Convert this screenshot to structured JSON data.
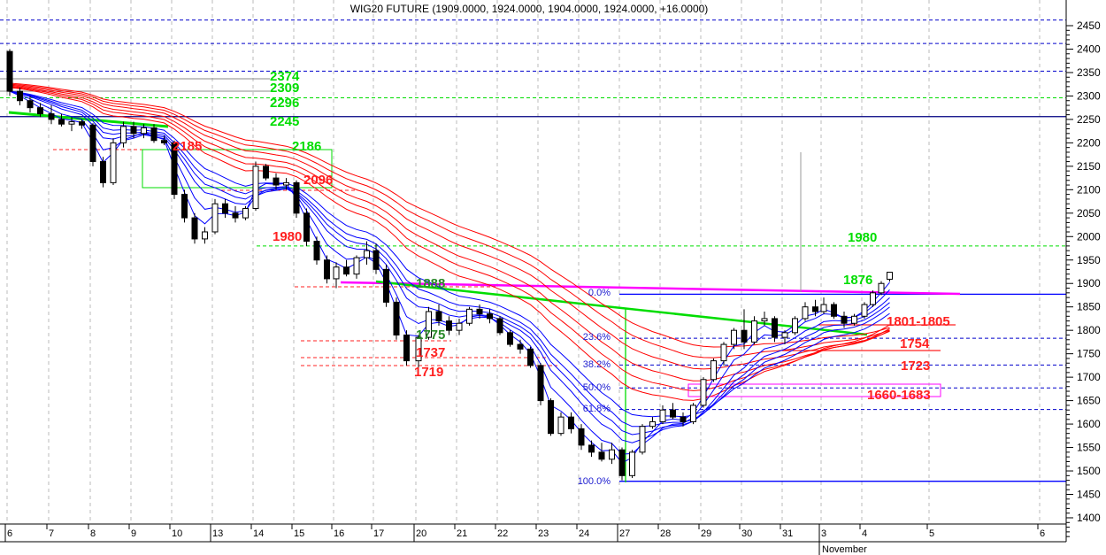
{
  "chart_data": {
    "type": "candlestick",
    "title": "WIG20 FUTURE (1909.0000, 1924.0000, 1904.0000, 1924.0000, +16.0000)",
    "ylim": [
      1390,
      2470
    ],
    "y_ticks": [
      2450,
      2400,
      2350,
      2300,
      2250,
      2200,
      2150,
      2100,
      2050,
      2000,
      1950,
      1900,
      1850,
      1800,
      1750,
      1700,
      1650,
      1600,
      1550,
      1500,
      1450,
      1400
    ],
    "x_ticks": [
      "6",
      "7",
      "8",
      "9",
      "10",
      "13",
      "14",
      "15",
      "16",
      "17",
      "20",
      "21",
      "22",
      "23",
      "24",
      "27",
      "28",
      "29",
      "30",
      "31",
      "3",
      "4",
      "5",
      "6"
    ],
    "month_label": "November",
    "grid": "vertical dashed",
    "candles_per_day": 4,
    "ohlc": [
      [
        2395,
        2400,
        2300,
        2310
      ],
      [
        2310,
        2318,
        2280,
        2290
      ],
      [
        2290,
        2300,
        2265,
        2275
      ],
      [
        2275,
        2285,
        2255,
        2262
      ],
      [
        2262,
        2280,
        2240,
        2250
      ],
      [
        2250,
        2262,
        2235,
        2240
      ],
      [
        2240,
        2255,
        2225,
        2245
      ],
      [
        2245,
        2250,
        2230,
        2238
      ],
      [
        2238,
        2242,
        2150,
        2160
      ],
      [
        2160,
        2170,
        2105,
        2115
      ],
      [
        2115,
        2210,
        2110,
        2200
      ],
      [
        2200,
        2245,
        2190,
        2235
      ],
      [
        2235,
        2245,
        2210,
        2220
      ],
      [
        2220,
        2240,
        2210,
        2232
      ],
      [
        2232,
        2240,
        2200,
        2205
      ],
      [
        2205,
        2215,
        2195,
        2200
      ],
      [
        2200,
        2205,
        2080,
        2090
      ],
      [
        2090,
        2100,
        2030,
        2040
      ],
      [
        2040,
        2050,
        1985,
        1995
      ],
      [
        1995,
        2020,
        1985,
        2010
      ],
      [
        2010,
        2080,
        2005,
        2070
      ],
      [
        2070,
        2080,
        2040,
        2050
      ],
      [
        2050,
        2065,
        2030,
        2040
      ],
      [
        2040,
        2065,
        2035,
        2060
      ],
      [
        2060,
        2160,
        2055,
        2150
      ],
      [
        2150,
        2155,
        2120,
        2125
      ],
      [
        2125,
        2135,
        2100,
        2110
      ],
      [
        2110,
        2125,
        2100,
        2115
      ],
      [
        2115,
        2120,
        2040,
        2050
      ],
      [
        2050,
        2060,
        1980,
        1990
      ],
      [
        1990,
        2000,
        1940,
        1950
      ],
      [
        1950,
        1960,
        1900,
        1910
      ],
      [
        1910,
        1945,
        1890,
        1935
      ],
      [
        1935,
        1950,
        1915,
        1920
      ],
      [
        1920,
        1960,
        1910,
        1955
      ],
      [
        1955,
        1990,
        1940,
        1970
      ],
      [
        1970,
        1985,
        1920,
        1930
      ],
      [
        1930,
        1940,
        1850,
        1860
      ],
      [
        1860,
        1870,
        1780,
        1790
      ],
      [
        1790,
        1800,
        1725,
        1735
      ],
      [
        1735,
        1790,
        1720,
        1785
      ],
      [
        1785,
        1850,
        1780,
        1840
      ],
      [
        1840,
        1855,
        1810,
        1820
      ],
      [
        1820,
        1830,
        1790,
        1800
      ],
      [
        1800,
        1825,
        1790,
        1815
      ],
      [
        1815,
        1850,
        1810,
        1845
      ],
      [
        1845,
        1855,
        1825,
        1835
      ],
      [
        1835,
        1845,
        1815,
        1825
      ],
      [
        1825,
        1830,
        1790,
        1795
      ],
      [
        1795,
        1800,
        1765,
        1770
      ],
      [
        1770,
        1780,
        1750,
        1760
      ],
      [
        1760,
        1765,
        1720,
        1725
      ],
      [
        1725,
        1730,
        1640,
        1650
      ],
      [
        1650,
        1655,
        1575,
        1580
      ],
      [
        1580,
        1625,
        1575,
        1615
      ],
      [
        1615,
        1625,
        1580,
        1590
      ],
      [
        1590,
        1600,
        1545,
        1555
      ],
      [
        1555,
        1565,
        1530,
        1540
      ],
      [
        1540,
        1560,
        1520,
        1525
      ],
      [
        1525,
        1560,
        1515,
        1545
      ],
      [
        1545,
        1550,
        1480,
        1490
      ],
      [
        1490,
        1545,
        1485,
        1540
      ],
      [
        1540,
        1600,
        1535,
        1595
      ],
      [
        1595,
        1615,
        1590,
        1605
      ],
      [
        1605,
        1640,
        1600,
        1630
      ],
      [
        1630,
        1645,
        1610,
        1615
      ],
      [
        1615,
        1625,
        1595,
        1605
      ],
      [
        1605,
        1645,
        1600,
        1640
      ],
      [
        1640,
        1700,
        1635,
        1695
      ],
      [
        1695,
        1740,
        1690,
        1735
      ],
      [
        1735,
        1775,
        1725,
        1770
      ],
      [
        1770,
        1805,
        1760,
        1800
      ],
      [
        1800,
        1845,
        1760,
        1775
      ],
      [
        1775,
        1830,
        1770,
        1820
      ],
      [
        1820,
        1840,
        1810,
        1825
      ],
      [
        1825,
        1830,
        1775,
        1785
      ],
      [
        1785,
        1800,
        1770,
        1795
      ],
      [
        1795,
        1830,
        1790,
        1825
      ],
      [
        1825,
        1860,
        1820,
        1850
      ],
      [
        1850,
        1865,
        1830,
        1840
      ],
      [
        1840,
        1870,
        1835,
        1855
      ],
      [
        1855,
        1860,
        1825,
        1830
      ],
      [
        1830,
        1840,
        1805,
        1815
      ],
      [
        1815,
        1835,
        1810,
        1830
      ],
      [
        1830,
        1860,
        1825,
        1855
      ],
      [
        1855,
        1885,
        1850,
        1880
      ],
      [
        1880,
        1905,
        1875,
        1900
      ],
      [
        1909,
        1924,
        1904,
        1924
      ]
    ],
    "ribbons": {
      "short_periods": [
        3,
        5,
        8,
        10,
        12,
        15
      ],
      "long_periods": [
        22,
        26,
        30,
        35,
        40,
        45
      ],
      "short_color": "#0000ff",
      "long_color": "#ff0000"
    },
    "levels": [
      {
        "value": 2462,
        "color": "#0000cc",
        "style": "dashed"
      },
      {
        "value": 2412,
        "color": "#0000cc",
        "style": "dashed"
      },
      {
        "value": 2353,
        "color": "#0000cc",
        "style": "dashed"
      },
      {
        "value": 2296,
        "color": "#00dd00",
        "style": "dashed"
      },
      {
        "value": 2256,
        "color": "#000080",
        "style": "solid"
      },
      {
        "value": 1980,
        "color": "#00dd00",
        "style": "dashed"
      },
      {
        "value": 1877,
        "color": "#0000ff",
        "style": "solid"
      },
      {
        "value": 1783,
        "color": "#0000cc",
        "style": "dashed"
      },
      {
        "value": 1726,
        "color": "#0000cc",
        "style": "dashed"
      },
      {
        "value": 1677,
        "color": "#0000cc",
        "style": "dashed"
      },
      {
        "value": 1631,
        "color": "#0000cc",
        "style": "dashed"
      },
      {
        "value": 1478,
        "color": "#0000ff",
        "style": "solid"
      }
    ],
    "fibonacci": [
      "0.0%",
      "23.6%",
      "38.2%",
      "50.0%",
      "61.8%",
      "100.0%"
    ],
    "annotations": [
      {
        "text": "2374",
        "color": "#00dd00"
      },
      {
        "text": "2309",
        "color": "#00dd00"
      },
      {
        "text": "2296",
        "color": "#00dd00"
      },
      {
        "text": "2245",
        "color": "#00dd00"
      },
      {
        "text": "2185",
        "color": "#ff2020"
      },
      {
        "text": "2186",
        "color": "#00dd00"
      },
      {
        "text": "2096",
        "color": "#ff2020"
      },
      {
        "text": "1980",
        "color": "#ff2020"
      },
      {
        "text": "1888",
        "color": "#2a8a2a"
      },
      {
        "text": "1775",
        "color": "#2a8a2a"
      },
      {
        "text": "1737",
        "color": "#ff2020"
      },
      {
        "text": "1719",
        "color": "#ff2020"
      },
      {
        "text": "1980",
        "color": "#00dd00"
      },
      {
        "text": "1876",
        "color": "#00dd00"
      },
      {
        "text": "1801-1805",
        "color": "#ff2020"
      },
      {
        "text": "1754",
        "color": "#ff2020"
      },
      {
        "text": "1723",
        "color": "#ff2020"
      },
      {
        "text": "1660-1683",
        "color": "#ff2020"
      }
    ]
  }
}
